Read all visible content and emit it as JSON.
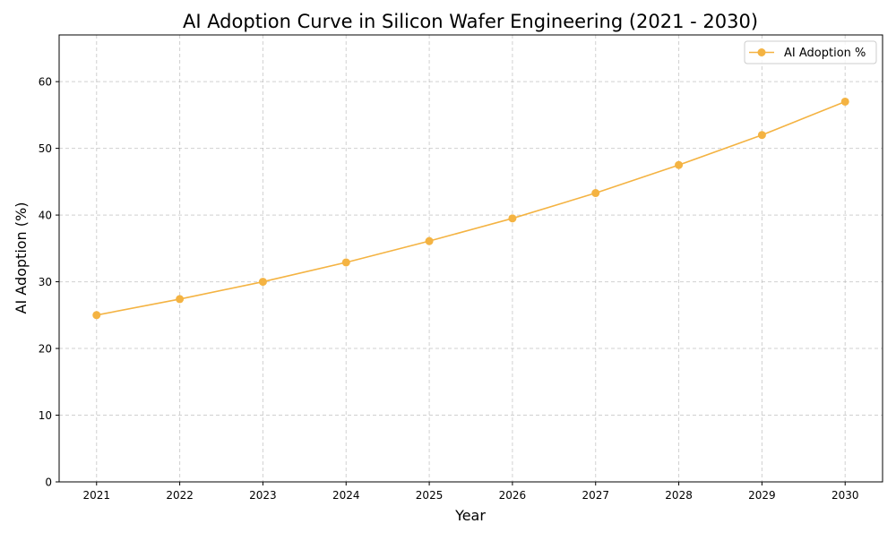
{
  "chart_data": {
    "type": "line",
    "title": "AI Adoption Curve in Silicon Wafer Engineering (2021 - 2030)",
    "xlabel": "Year",
    "ylabel": "AI Adoption (%)",
    "x": [
      2021,
      2022,
      2023,
      2024,
      2025,
      2026,
      2027,
      2028,
      2029,
      2030
    ],
    "series": [
      {
        "name": "AI Adoption %",
        "values": [
          25.0,
          27.4,
          30.0,
          32.9,
          36.1,
          39.5,
          43.3,
          47.5,
          52.0,
          57.0
        ],
        "color": "#f4b342",
        "marker": "circle"
      }
    ],
    "xlim": [
      2020.55,
      2030.45
    ],
    "ylim": [
      0,
      67
    ],
    "xticks": [
      "2021",
      "2022",
      "2023",
      "2024",
      "2025",
      "2026",
      "2027",
      "2028",
      "2029",
      "2030"
    ],
    "yticks": [
      "0",
      "10",
      "20",
      "30",
      "40",
      "50",
      "60"
    ],
    "grid": true,
    "grid_style": "dashed",
    "legend_position": "top-right"
  }
}
